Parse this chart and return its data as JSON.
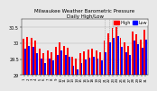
{
  "title": "Milwaukee Weather Barometric Pressure",
  "subtitle": "Daily High/Low",
  "background_color": "#e8e8e8",
  "plot_bg": "#e8e8e8",
  "high_color": "#ff0000",
  "low_color": "#0000ff",
  "legend_high": "High",
  "legend_low": "Low",
  "ylim": [
    29.0,
    30.75
  ],
  "ytick_vals": [
    29.0,
    29.5,
    30.0,
    30.5
  ],
  "ytick_labels": [
    "29",
    "29.5",
    "30",
    "30.5"
  ],
  "bar_bottom": 29.0,
  "days": [
    1,
    2,
    3,
    4,
    5,
    6,
    7,
    8,
    9,
    10,
    11,
    12,
    13,
    14,
    15,
    16,
    17,
    18,
    19,
    20,
    21,
    22,
    23,
    24,
    25,
    26,
    27,
    28,
    29,
    30,
    31
  ],
  "highs": [
    30.15,
    30.2,
    30.18,
    30.08,
    29.82,
    29.7,
    29.78,
    29.72,
    29.88,
    30.02,
    29.9,
    29.85,
    29.58,
    29.52,
    29.68,
    29.75,
    29.8,
    29.83,
    29.78,
    29.72,
    30.08,
    30.32,
    30.48,
    30.52,
    30.18,
    30.02,
    29.92,
    30.38,
    30.28,
    30.12,
    30.42
  ],
  "lows": [
    29.82,
    29.92,
    29.88,
    29.68,
    29.52,
    29.38,
    29.52,
    29.47,
    29.62,
    29.78,
    29.62,
    29.58,
    29.28,
    29.18,
    29.38,
    29.48,
    29.55,
    29.58,
    29.52,
    29.47,
    29.72,
    30.02,
    30.18,
    30.22,
    29.88,
    29.72,
    29.62,
    30.08,
    29.98,
    29.85,
    30.12
  ],
  "dotted_cols": [
    21,
    22,
    23,
    24
  ],
  "title_fontsize": 4.0,
  "tick_fontsize": 3.5,
  "legend_fontsize": 3.5
}
